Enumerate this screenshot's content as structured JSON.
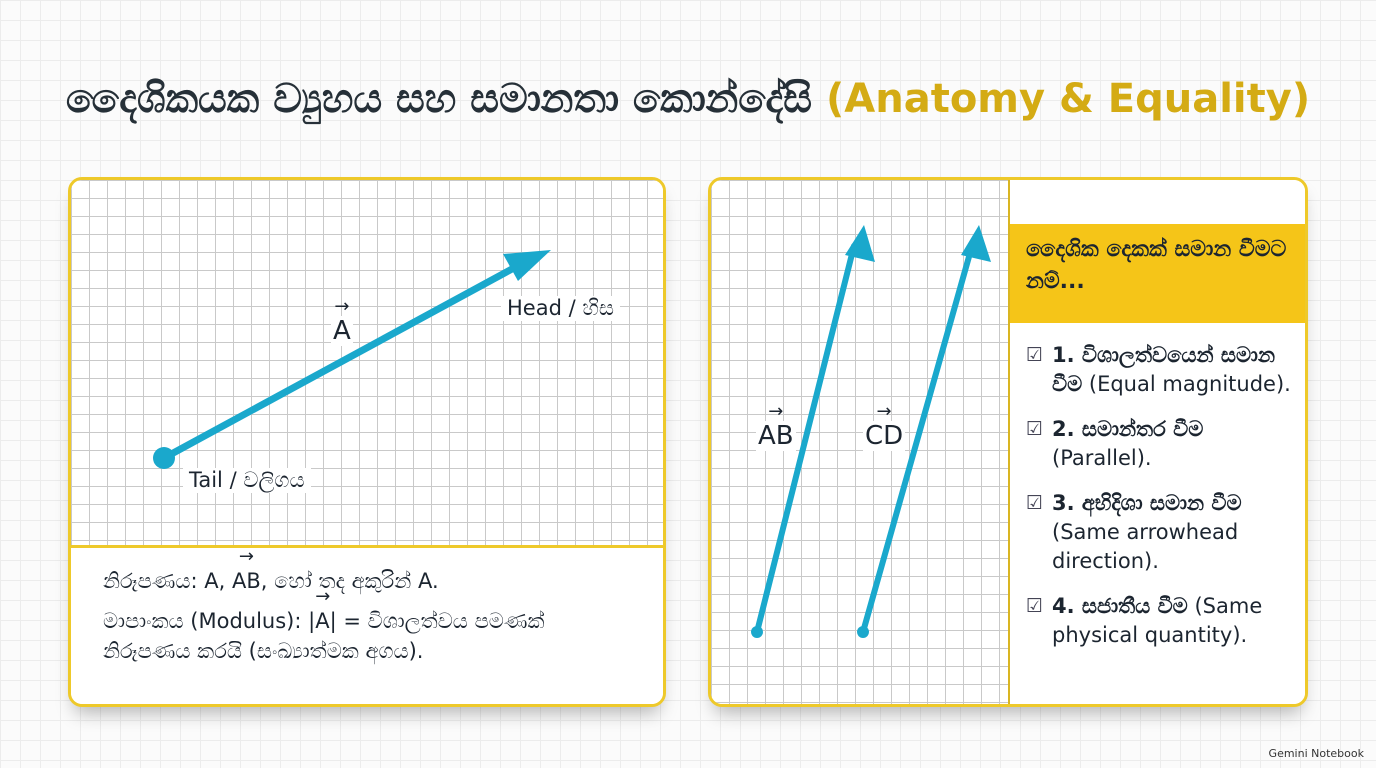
{
  "title": {
    "si": "දෛශිකයක ව්‍යුහය සහ සමානතා කොන්දේසි",
    "en": "(Anatomy & Equality)"
  },
  "left_panel": {
    "vector_name": "A",
    "head_label": "Head / හිස",
    "tail_label": "Tail / වලිගය",
    "notation": {
      "prefix": "නිරූපණය: A,",
      "ab": "AB",
      "suffix": ", හෝ තද අකුරින් A."
    },
    "modulus": {
      "prefix": "මාපාංකය (Modulus): |",
      "a": "A",
      "suffix": "| = විශාලත්වය පමණක් නිරූපණය කරයි (සංඛ්‍යාත්මක අගය)."
    }
  },
  "right_panel": {
    "vector_ab": "AB",
    "vector_cd": "CD",
    "header": "දෛශික දෙකක් සමාන වීමට නම්...",
    "conditions": [
      {
        "num": "1. විශාලත්වයෙන් සමාන වීම",
        "detail": "(Equal magnitude)."
      },
      {
        "num": "2. සමාන්තර වීම",
        "detail": "(Parallel)."
      },
      {
        "num": "3. අභිදිශා සමාන වීම",
        "detail": "(Same arrowhead direction)."
      },
      {
        "num": "4. සජාතීය වීම",
        "detail": "(Same physical quantity)."
      }
    ]
  },
  "brand": "Gemini Notebook",
  "colors": {
    "accent": "#eec92a",
    "vector": "#1aa8cc",
    "title_en": "#d4ab14",
    "band": "#f5c518"
  }
}
